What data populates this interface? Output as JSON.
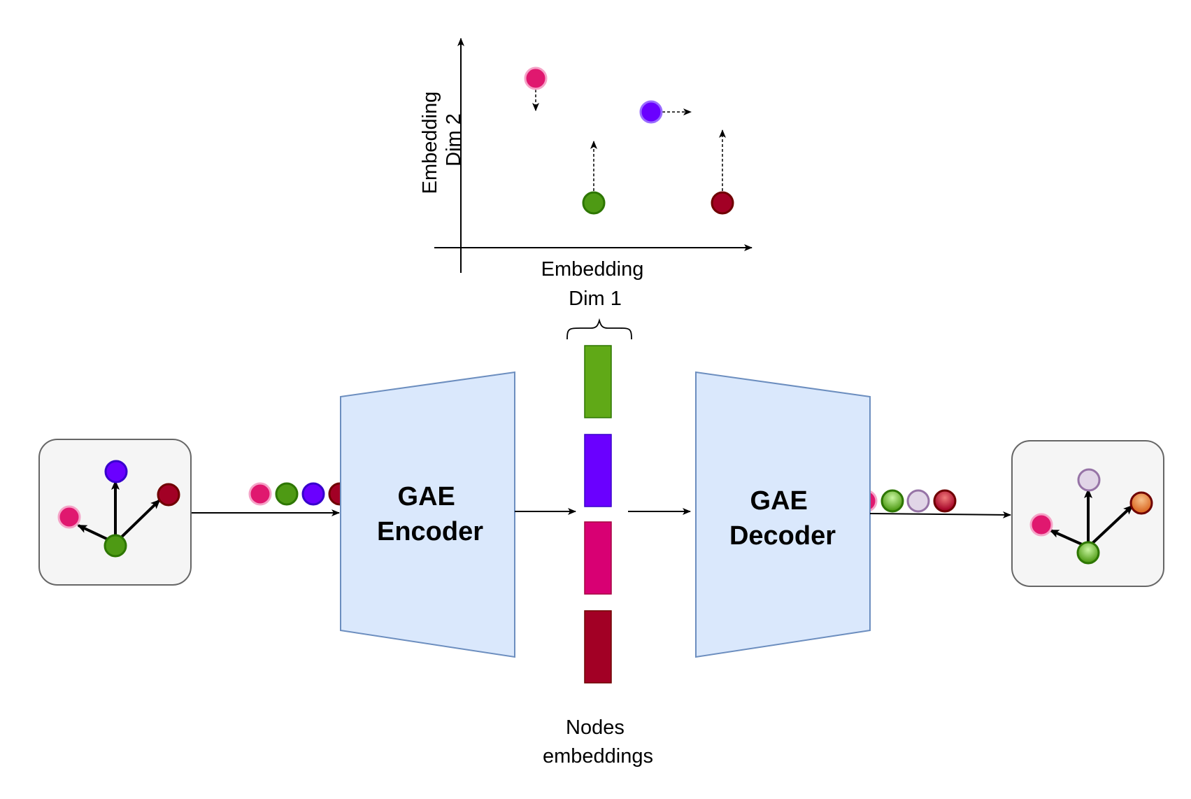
{
  "scatter_plot": {
    "x_axis_label_line1": "Embedding",
    "x_axis_label_line2": "Dim 1",
    "y_axis_label_line1": "Embedding",
    "y_axis_label_line2": "Dim 2"
  },
  "encoder": {
    "label_line1": "GAE",
    "label_line2": "Encoder"
  },
  "decoder": {
    "label_line1": "GAE",
    "label_line2": "Decoder"
  },
  "embeddings": {
    "caption_line1": "Nodes",
    "caption_line2": "embeddings"
  },
  "colors": {
    "pink_node": "#e0186f",
    "green_node": "#4e9a14",
    "blue_node": "#6a00ff",
    "darkred_node": "#a20025",
    "lavender_node": "#d5c3e0",
    "orange_node": "#e8904a",
    "block_fill": "#dae8fc",
    "block_stroke": "#6c8ebf",
    "graph_box_fill": "#f5f5f5",
    "graph_box_stroke": "#666666"
  }
}
